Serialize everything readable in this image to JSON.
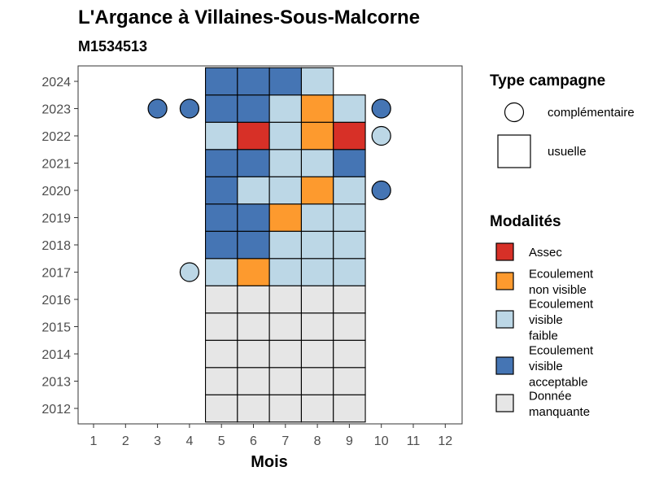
{
  "chart_data": {
    "type": "heatmap",
    "title": "L'Argance à Villaines-Sous-Malcorne",
    "subtitle": "M1534513",
    "xlabel": "Mois",
    "ylabel": "",
    "x_ticks": [
      "1",
      "2",
      "3",
      "4",
      "5",
      "6",
      "7",
      "8",
      "9",
      "10",
      "11",
      "12"
    ],
    "y_ticks": [
      "2012",
      "2013",
      "2014",
      "2015",
      "2016",
      "2017",
      "2018",
      "2019",
      "2020",
      "2021",
      "2022",
      "2023",
      "2024"
    ],
    "grid": false,
    "legend_type": {
      "title": "Type campagne",
      "items": [
        {
          "label": "complémentaire",
          "shape": "circle"
        },
        {
          "label": "usuelle",
          "shape": "square"
        }
      ]
    },
    "legend_mod": {
      "title": "Modalités",
      "items": [
        {
          "lines": [
            "Assec"
          ],
          "color": "#d73027"
        },
        {
          "lines": [
            "Ecoulement",
            "non visible"
          ],
          "color": "#fd9a2e"
        },
        {
          "lines": [
            "Ecoulement",
            "visible",
            "faible"
          ],
          "color": "#bcd7e6"
        },
        {
          "lines": [
            "Ecoulement",
            "visible",
            "acceptable"
          ],
          "color": "#4575b4"
        },
        {
          "lines": [
            "Donnée",
            "manquante"
          ],
          "color": "#e6e6e6"
        }
      ]
    },
    "colors": {
      "assec": "#d73027",
      "non_visible": "#fd9a2e",
      "faible": "#bcd7e6",
      "acceptable": "#4575b4",
      "manquante": "#e6e6e6"
    },
    "usuelle": [
      {
        "year": 2012,
        "month": 5,
        "mod": "manquante"
      },
      {
        "year": 2012,
        "month": 6,
        "mod": "manquante"
      },
      {
        "year": 2012,
        "month": 7,
        "mod": "manquante"
      },
      {
        "year": 2012,
        "month": 8,
        "mod": "manquante"
      },
      {
        "year": 2012,
        "month": 9,
        "mod": "manquante"
      },
      {
        "year": 2013,
        "month": 5,
        "mod": "manquante"
      },
      {
        "year": 2013,
        "month": 6,
        "mod": "manquante"
      },
      {
        "year": 2013,
        "month": 7,
        "mod": "manquante"
      },
      {
        "year": 2013,
        "month": 8,
        "mod": "manquante"
      },
      {
        "year": 2013,
        "month": 9,
        "mod": "manquante"
      },
      {
        "year": 2014,
        "month": 5,
        "mod": "manquante"
      },
      {
        "year": 2014,
        "month": 6,
        "mod": "manquante"
      },
      {
        "year": 2014,
        "month": 7,
        "mod": "manquante"
      },
      {
        "year": 2014,
        "month": 8,
        "mod": "manquante"
      },
      {
        "year": 2014,
        "month": 9,
        "mod": "manquante"
      },
      {
        "year": 2015,
        "month": 5,
        "mod": "manquante"
      },
      {
        "year": 2015,
        "month": 6,
        "mod": "manquante"
      },
      {
        "year": 2015,
        "month": 7,
        "mod": "manquante"
      },
      {
        "year": 2015,
        "month": 8,
        "mod": "manquante"
      },
      {
        "year": 2015,
        "month": 9,
        "mod": "manquante"
      },
      {
        "year": 2016,
        "month": 5,
        "mod": "manquante"
      },
      {
        "year": 2016,
        "month": 6,
        "mod": "manquante"
      },
      {
        "year": 2016,
        "month": 7,
        "mod": "manquante"
      },
      {
        "year": 2016,
        "month": 8,
        "mod": "manquante"
      },
      {
        "year": 2016,
        "month": 9,
        "mod": "manquante"
      },
      {
        "year": 2017,
        "month": 5,
        "mod": "faible"
      },
      {
        "year": 2017,
        "month": 6,
        "mod": "non_visible"
      },
      {
        "year": 2017,
        "month": 7,
        "mod": "faible"
      },
      {
        "year": 2017,
        "month": 8,
        "mod": "faible"
      },
      {
        "year": 2017,
        "month": 9,
        "mod": "faible"
      },
      {
        "year": 2018,
        "month": 5,
        "mod": "acceptable"
      },
      {
        "year": 2018,
        "month": 6,
        "mod": "acceptable"
      },
      {
        "year": 2018,
        "month": 7,
        "mod": "faible"
      },
      {
        "year": 2018,
        "month": 8,
        "mod": "faible"
      },
      {
        "year": 2018,
        "month": 9,
        "mod": "faible"
      },
      {
        "year": 2019,
        "month": 5,
        "mod": "acceptable"
      },
      {
        "year": 2019,
        "month": 6,
        "mod": "acceptable"
      },
      {
        "year": 2019,
        "month": 7,
        "mod": "non_visible"
      },
      {
        "year": 2019,
        "month": 8,
        "mod": "faible"
      },
      {
        "year": 2019,
        "month": 9,
        "mod": "faible"
      },
      {
        "year": 2020,
        "month": 5,
        "mod": "acceptable"
      },
      {
        "year": 2020,
        "month": 6,
        "mod": "faible"
      },
      {
        "year": 2020,
        "month": 7,
        "mod": "faible"
      },
      {
        "year": 2020,
        "month": 8,
        "mod": "non_visible"
      },
      {
        "year": 2020,
        "month": 9,
        "mod": "faible"
      },
      {
        "year": 2021,
        "month": 5,
        "mod": "acceptable"
      },
      {
        "year": 2021,
        "month": 6,
        "mod": "acceptable"
      },
      {
        "year": 2021,
        "month": 7,
        "mod": "faible"
      },
      {
        "year": 2021,
        "month": 8,
        "mod": "faible"
      },
      {
        "year": 2021,
        "month": 9,
        "mod": "acceptable"
      },
      {
        "year": 2022,
        "month": 5,
        "mod": "faible"
      },
      {
        "year": 2022,
        "month": 6,
        "mod": "assec"
      },
      {
        "year": 2022,
        "month": 7,
        "mod": "faible"
      },
      {
        "year": 2022,
        "month": 8,
        "mod": "non_visible"
      },
      {
        "year": 2022,
        "month": 9,
        "mod": "assec"
      },
      {
        "year": 2023,
        "month": 5,
        "mod": "acceptable"
      },
      {
        "year": 2023,
        "month": 6,
        "mod": "acceptable"
      },
      {
        "year": 2023,
        "month": 7,
        "mod": "faible"
      },
      {
        "year": 2023,
        "month": 8,
        "mod": "non_visible"
      },
      {
        "year": 2023,
        "month": 9,
        "mod": "faible"
      },
      {
        "year": 2024,
        "month": 5,
        "mod": "acceptable"
      },
      {
        "year": 2024,
        "month": 6,
        "mod": "acceptable"
      },
      {
        "year": 2024,
        "month": 7,
        "mod": "acceptable"
      },
      {
        "year": 2024,
        "month": 8,
        "mod": "faible"
      }
    ],
    "complementaire": [
      {
        "year": 2023,
        "month": 3,
        "mod": "acceptable"
      },
      {
        "year": 2023,
        "month": 4,
        "mod": "acceptable"
      },
      {
        "year": 2023,
        "month": 10,
        "mod": "acceptable"
      },
      {
        "year": 2022,
        "month": 10,
        "mod": "faible"
      },
      {
        "year": 2020,
        "month": 10,
        "mod": "acceptable"
      },
      {
        "year": 2017,
        "month": 4,
        "mod": "faible"
      }
    ]
  }
}
